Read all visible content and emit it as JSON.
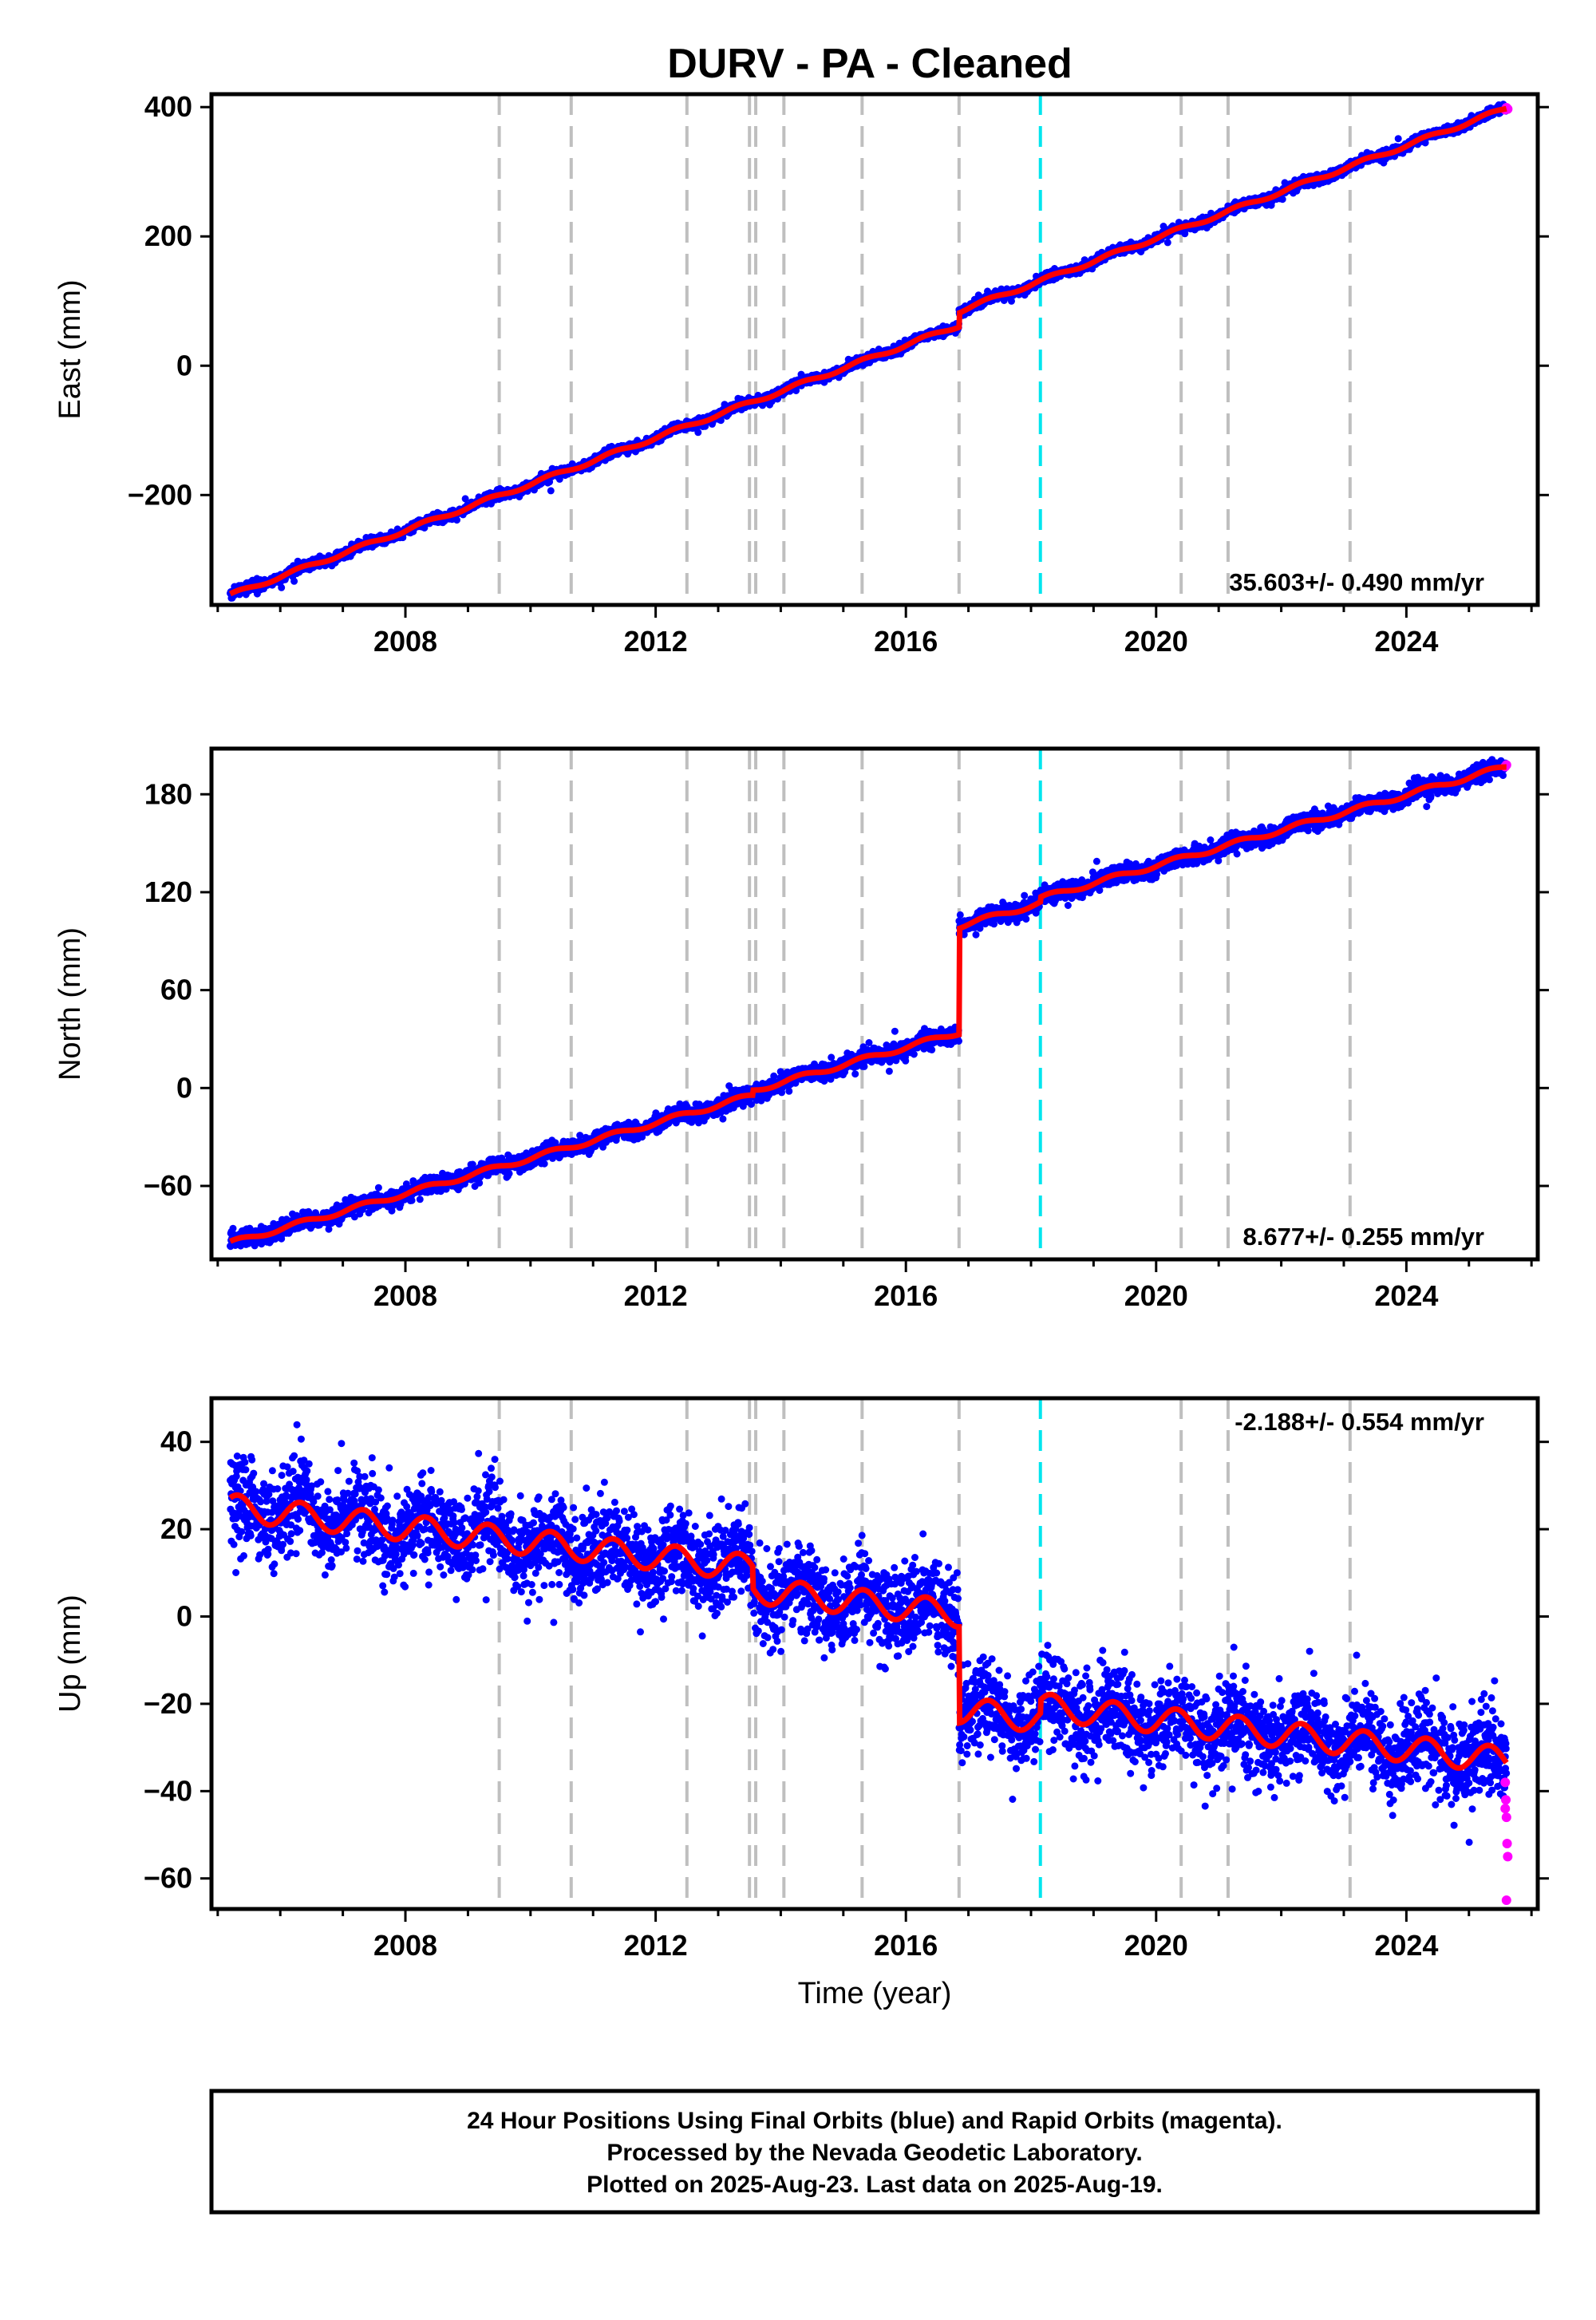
{
  "title": "DURV  - PA - Cleaned",
  "footer": {
    "line1": "24 Hour Positions Using Final Orbits (blue) and Rapid Orbits (magenta).",
    "line2": "Processed by the Nevada Geodetic Laboratory.",
    "line3": "Plotted on 2025-Aug-23. Last data on 2025-Aug-19."
  },
  "colors": {
    "final_orbits": "#0000ff",
    "rapid_orbits": "#ff00ff",
    "model": "#ff0000",
    "equipment_change": "#bfbfbf",
    "earthquake": "#00e5ee"
  },
  "chart_data": [
    {
      "type": "scatter",
      "panel": "east",
      "ylabel": "East (mm)",
      "xlim": [
        2004.9,
        2026.1
      ],
      "ylim": [
        -370,
        420
      ],
      "yticks": [
        400,
        200,
        0,
        -200
      ],
      "ytick_labels": [
        "400",
        "200",
        "0",
        "−200"
      ],
      "xticks": [
        2008,
        2012,
        2016,
        2020,
        2024
      ],
      "xtick_labels": [
        "2008",
        "2012",
        "2016",
        "2020",
        "2024"
      ],
      "rate": "35.603+/- 0.490 mm/yr",
      "rate_position": "bottom-right",
      "start": [
        2005.2,
        -355
      ],
      "end": [
        2025.6,
        398
      ],
      "offsets": [
        [
          2016.85,
          22
        ]
      ],
      "seasonal_amplitude": 3,
      "scatter": 3.5,
      "rapid_points": [
        [
          2025.58,
          396
        ],
        [
          2025.6,
          399
        ],
        [
          2025.62,
          397
        ]
      ]
    },
    {
      "type": "scatter",
      "panel": "north",
      "ylabel": "North (mm)",
      "xlim": [
        2004.9,
        2026.1
      ],
      "ylim": [
        -105,
        208
      ],
      "yticks": [
        180,
        120,
        60,
        0,
        -60
      ],
      "ytick_labels": [
        "180",
        "120",
        "60",
        "0",
        "−60"
      ],
      "xticks": [
        2008,
        2012,
        2016,
        2020,
        2024
      ],
      "xtick_labels": [
        "2008",
        "2012",
        "2016",
        "2020",
        "2024"
      ],
      "rate": "8.677+/- 0.255 mm/yr",
      "rate_position": "bottom-right",
      "start": [
        2005.2,
        -95
      ],
      "end": [
        2025.6,
        197
      ],
      "offsets": [
        [
          2016.85,
          65
        ],
        [
          2013.55,
          3
        ],
        [
          2018.15,
          3
        ]
      ],
      "seasonal_amplitude": 1.5,
      "scatter": 2.5,
      "rapid_points": [
        [
          2025.58,
          197
        ],
        [
          2025.6,
          198
        ]
      ]
    },
    {
      "type": "scatter",
      "panel": "up",
      "ylabel": "Up (mm)",
      "xlabel": "Time (year)",
      "xlim": [
        2004.9,
        2026.1
      ],
      "ylim": [
        -67,
        50
      ],
      "yticks": [
        40,
        20,
        0,
        -20,
        -40,
        -60
      ],
      "ytick_labels": [
        "40",
        "20",
        "0",
        "−20",
        "−40",
        "−60"
      ],
      "xticks": [
        2008,
        2012,
        2016,
        2020,
        2024
      ],
      "xtick_labels": [
        "2008",
        "2012",
        "2016",
        "2020",
        "2024"
      ],
      "rate": "-2.188+/- 0.554 mm/yr",
      "rate_position": "top-right",
      "start": [
        2005.2,
        25
      ],
      "end": [
        2025.6,
        -33
      ],
      "offsets": [
        [
          2016.85,
          -22
        ],
        [
          2013.55,
          -5
        ],
        [
          2018.15,
          3
        ]
      ],
      "seasonal_amplitude": 3,
      "scatter": 5,
      "rapid_points": [
        [
          2025.58,
          -38
        ],
        [
          2025.59,
          -42
        ],
        [
          2025.6,
          -46
        ],
        [
          2025.61,
          -52
        ],
        [
          2025.62,
          -55
        ],
        [
          2025.6,
          -65
        ],
        [
          2025.58,
          -44
        ]
      ]
    }
  ],
  "equipment_changes": [
    2009.5,
    2010.65,
    2012.5,
    2013.5,
    2013.6,
    2014.05,
    2015.3,
    2016.85,
    2020.4,
    2021.15,
    2023.1
  ],
  "earthquakes": [
    2018.15
  ]
}
